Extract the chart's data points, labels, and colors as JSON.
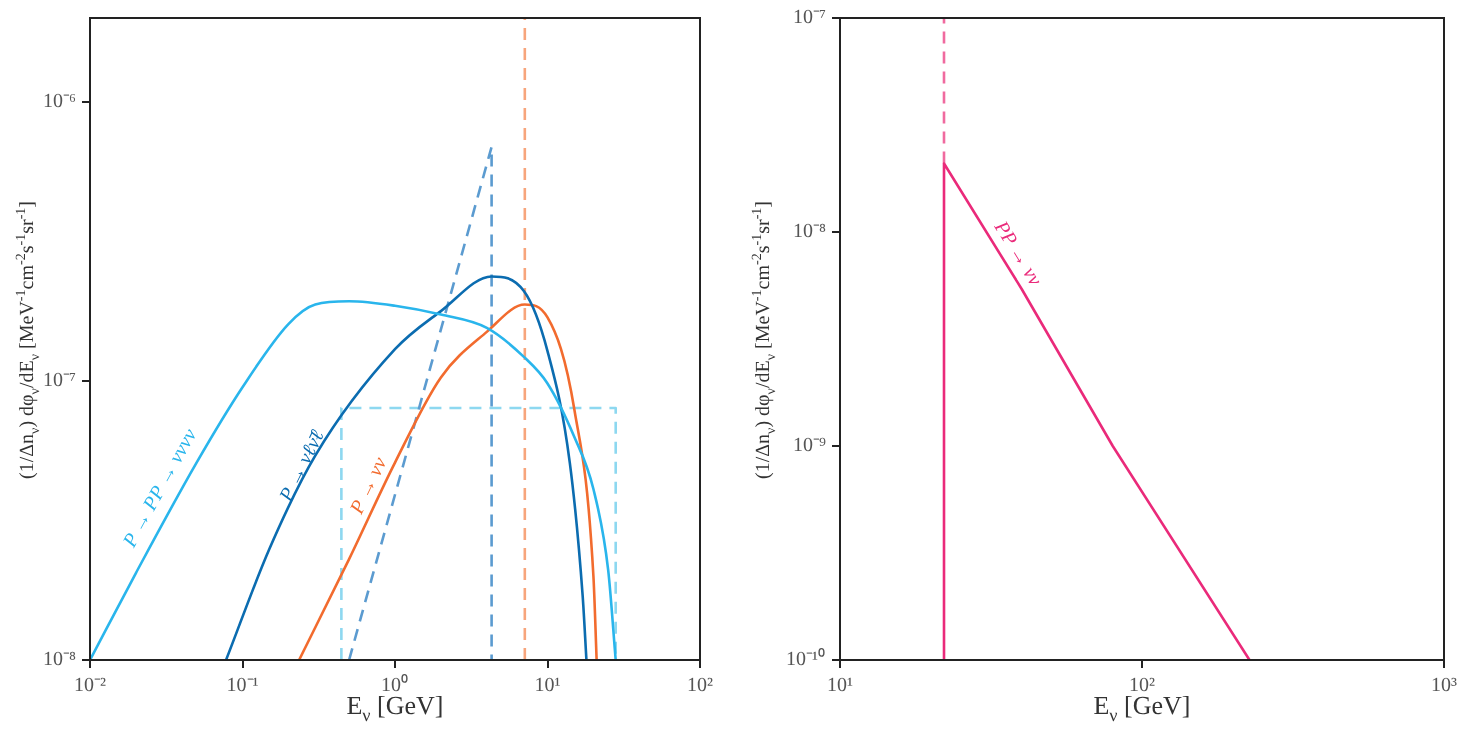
{
  "chart_data": [
    {
      "type": "line",
      "log": "xy",
      "xlabel": "E$_{ν}$ [GeV]",
      "ylabel": "(1/Δn$_{ν}$) dφ$_{ν}$/dE$_{ν}$ [MeV$^{-1}$cm$^{-2}$s$^{-1}$sr$^{-1}$]",
      "xlim": [
        0.01,
        100
      ],
      "ylim": [
        1e-08,
        2e-06
      ],
      "xticks": [
        {
          "value": 0.01,
          "label": "10⁻²"
        },
        {
          "value": 0.1,
          "label": "10⁻¹"
        },
        {
          "value": 1,
          "label": "10⁰"
        },
        {
          "value": 10,
          "label": "10¹"
        },
        {
          "value": 100,
          "label": "10²"
        }
      ],
      "yticks": [
        {
          "value": 1e-08,
          "label": "10⁻⁸"
        },
        {
          "value": 1e-07,
          "label": "10⁻⁷"
        },
        {
          "value": 1e-06,
          "label": "10⁻⁶"
        }
      ],
      "series": [
        {
          "color": "#29b5ec",
          "line_style": "solid",
          "x": [
            0.01,
            0.02,
            0.05,
            0.1,
            0.2,
            0.3,
            0.5,
            1,
            2,
            4,
            7,
            10,
            15,
            20,
            25,
            28
          ],
          "values": [
            1e-08,
            2.05e-08,
            5.1e-08,
            9.5e-08,
            1.6e-07,
            1.88e-07,
            1.93e-07,
            1.86e-07,
            1.73e-07,
            1.55e-07,
            1.22e-07,
            9.8e-08,
            6.3e-08,
            4.1e-08,
            2.1e-08,
            1e-08
          ]
        },
        {
          "color": "#0b6cb0",
          "line_style": "solid",
          "x": [
            0.078,
            0.15,
            0.3,
            1,
            2,
            4.3,
            7,
            10,
            14,
            17,
            18
          ],
          "values": [
            1e-08,
            2.5e-08,
            5.4e-08,
            1.3e-07,
            1.78e-07,
            2.37e-07,
            2.1e-07,
            1.28e-07,
            5.1e-08,
            1.7e-08,
            1e-08
          ]
        },
        {
          "color": "#f26b2e",
          "line_style": "solid",
          "x": [
            0.235,
            0.5,
            1,
            2,
            4,
            7.1,
            10,
            15,
            20,
            21
          ],
          "values": [
            1e-08,
            2.3e-08,
            5.1e-08,
            1.03e-07,
            1.5e-07,
            1.88e-07,
            1.69e-07,
            7.9e-08,
            2e-08,
            1e-08
          ]
        },
        {
          "color": "#5b9bd0",
          "line_style": "dashed",
          "x": [
            0.5,
            4.3,
            4.3
          ],
          "values": [
            1e-08,
            6.9e-07,
            1e-08
          ]
        },
        {
          "color": "#8dd8f0",
          "line_style": "dashed",
          "x": [
            0.445,
            0.445,
            28,
            28
          ],
          "values": [
            1e-08,
            8e-08,
            8e-08,
            1e-08
          ]
        },
        {
          "color": "#f7a57c",
          "line_style": "dashed",
          "x": [
            7.1,
            7.1
          ],
          "values": [
            1e-08,
            2e-06
          ]
        }
      ],
      "annotations": [
        {
          "text": "P → PP → νννν",
          "x": 0.035,
          "y": 3.9e-08
        },
        {
          "text": "P → νℓν̄ℓ",
          "x": 0.3,
          "y": 4.7e-08
        },
        {
          "text": "P → νν",
          "x": 0.82,
          "y": 4e-08
        }
      ]
    },
    {
      "type": "line",
      "log": "xy",
      "xlabel": "E$_{ν}$ [GeV]",
      "ylabel": "(1/Δn$_{ν}$) dφ$_{ν}$/dE$_{ν}$ [MeV$^{-1}$cm$^{-2}$s$^{-1}$sr$^{-1}$]",
      "xlim": [
        10,
        1000
      ],
      "ylim": [
        1e-10,
        1e-07
      ],
      "xticks": [
        {
          "value": 10,
          "label": "10¹"
        },
        {
          "value": 100,
          "label": "10²"
        },
        {
          "value": 1000,
          "label": "10³"
        }
      ],
      "yticks": [
        {
          "value": 1e-10,
          "label": "10⁻¹⁰"
        },
        {
          "value": 1e-09,
          "label": "10⁻⁹"
        },
        {
          "value": 1e-08,
          "label": "10⁻⁸"
        },
        {
          "value": 1e-07,
          "label": "10⁻⁷"
        }
      ],
      "series": [
        {
          "color": "#ea2a7a",
          "line_style": "solid",
          "x": [
            22.1,
            22.1,
            40,
            80,
            227
          ],
          "values": [
            1e-10,
            2.09e-08,
            5.4e-09,
            1e-09,
            1e-10
          ]
        },
        {
          "color": "#f06a9f",
          "line_style": "dashed",
          "x": [
            22.1,
            22.1
          ],
          "values": [
            2.09e-08,
            1e-07
          ]
        }
      ],
      "annotations": [
        {
          "text": "PP → νν",
          "x": 35.3,
          "y": 7.3e-09
        }
      ]
    }
  ]
}
